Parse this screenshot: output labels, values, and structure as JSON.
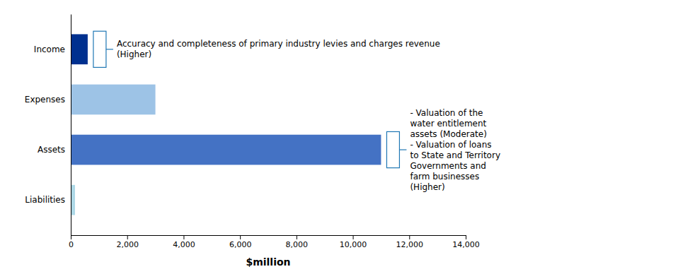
{
  "chart_data": {
    "type": "bar",
    "orientation": "horizontal",
    "categories": [
      "Liabilities",
      "Assets",
      "Expenses",
      "Income"
    ],
    "values": [
      150,
      11000,
      3000,
      600
    ],
    "colors": [
      "#add8e6",
      "#4472c4",
      "#9dc3e6",
      "#00308f"
    ],
    "xlabel": "$million",
    "xlim": [
      0,
      14000
    ],
    "xticks": [
      0,
      {
        "value": 2000,
        "label": "2,000"
      },
      {
        "value": 4000,
        "label": "4,000"
      },
      {
        "value": 6000,
        "label": "6,000"
      },
      {
        "value": 8000,
        "label": "8,000"
      },
      {
        "value": 10000,
        "label": "10,000"
      },
      {
        "value": 12000,
        "label": "12,000"
      },
      {
        "value": 14000,
        "label": "14,000"
      }
    ],
    "grid": false,
    "annotations": [
      {
        "category": "Income",
        "text": "Accuracy and completeness of primary industry levies and charges revenue\n(Higher)"
      },
      {
        "category": "Assets",
        "text": "- Valuation of the\nwater entitlement\nassets (Moderate)\n- Valuation of loans\nto State and Territory\nGovernments and\nfarm businesses\n(Higher)"
      }
    ]
  }
}
